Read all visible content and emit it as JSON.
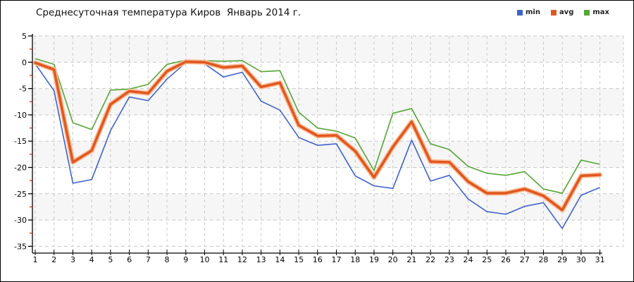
{
  "chart_data": {
    "type": "line",
    "title": "Среднесуточная температура Киров  Январь 2014 г.",
    "x": [
      1,
      2,
      3,
      4,
      5,
      6,
      7,
      8,
      9,
      10,
      11,
      12,
      13,
      14,
      15,
      16,
      17,
      18,
      19,
      20,
      21,
      22,
      23,
      24,
      25,
      26,
      27,
      28,
      29,
      30,
      31
    ],
    "xlabel": "",
    "ylabel": "",
    "ylim": [
      -35,
      5
    ],
    "yticks": [
      5,
      0,
      -5,
      -10,
      -15,
      -20,
      -25,
      -30,
      -35
    ],
    "grid": true,
    "legend_position": "top-right",
    "series": [
      {
        "name": "min",
        "color": "#3f63cb",
        "width": 1.6,
        "values": [
          -0.3,
          -5.4,
          -23.0,
          -22.3,
          -13.0,
          -6.6,
          -7.3,
          -3.2,
          -0.1,
          -0.3,
          -2.8,
          -1.9,
          -7.4,
          -9.1,
          -14.3,
          -15.8,
          -15.5,
          -21.6,
          -23.5,
          -24.0,
          -14.8,
          -22.6,
          -21.5,
          -26.0,
          -28.4,
          -28.9,
          -27.4,
          -26.7,
          -31.6,
          -25.3,
          -23.8
        ]
      },
      {
        "name": "avg",
        "color": "#e2571f",
        "halo_color": "#f8c09a",
        "width": 3.6,
        "values": [
          -0.1,
          -1.4,
          -19.0,
          -16.8,
          -8.0,
          -5.5,
          -5.9,
          -1.7,
          0.1,
          0.0,
          -1.0,
          -0.7,
          -4.7,
          -3.9,
          -12.0,
          -14.0,
          -13.9,
          -16.9,
          -21.9,
          -16.1,
          -11.3,
          -18.9,
          -19.0,
          -22.7,
          -24.9,
          -24.9,
          -24.1,
          -25.4,
          -28.1,
          -21.6,
          -21.4
        ]
      },
      {
        "name": "max",
        "color": "#55a637",
        "width": 1.6,
        "values": [
          0.7,
          -0.4,
          -11.5,
          -12.8,
          -5.3,
          -5.1,
          -4.2,
          -0.4,
          0.4,
          0.3,
          0.2,
          0.3,
          -1.8,
          -1.6,
          -9.5,
          -12.5,
          -13.1,
          -14.4,
          -20.6,
          -9.7,
          -8.8,
          -15.5,
          -16.6,
          -19.8,
          -21.1,
          -21.5,
          -20.8,
          -24.1,
          -24.9,
          -18.6,
          -19.4
        ]
      }
    ],
    "colors": {
      "axis": "#000000",
      "tick_label": "#000000",
      "minor_tick": "#cc2200",
      "grid": "#c9c9c9",
      "band": "#f6f6f6",
      "background": "#ffffff"
    }
  }
}
